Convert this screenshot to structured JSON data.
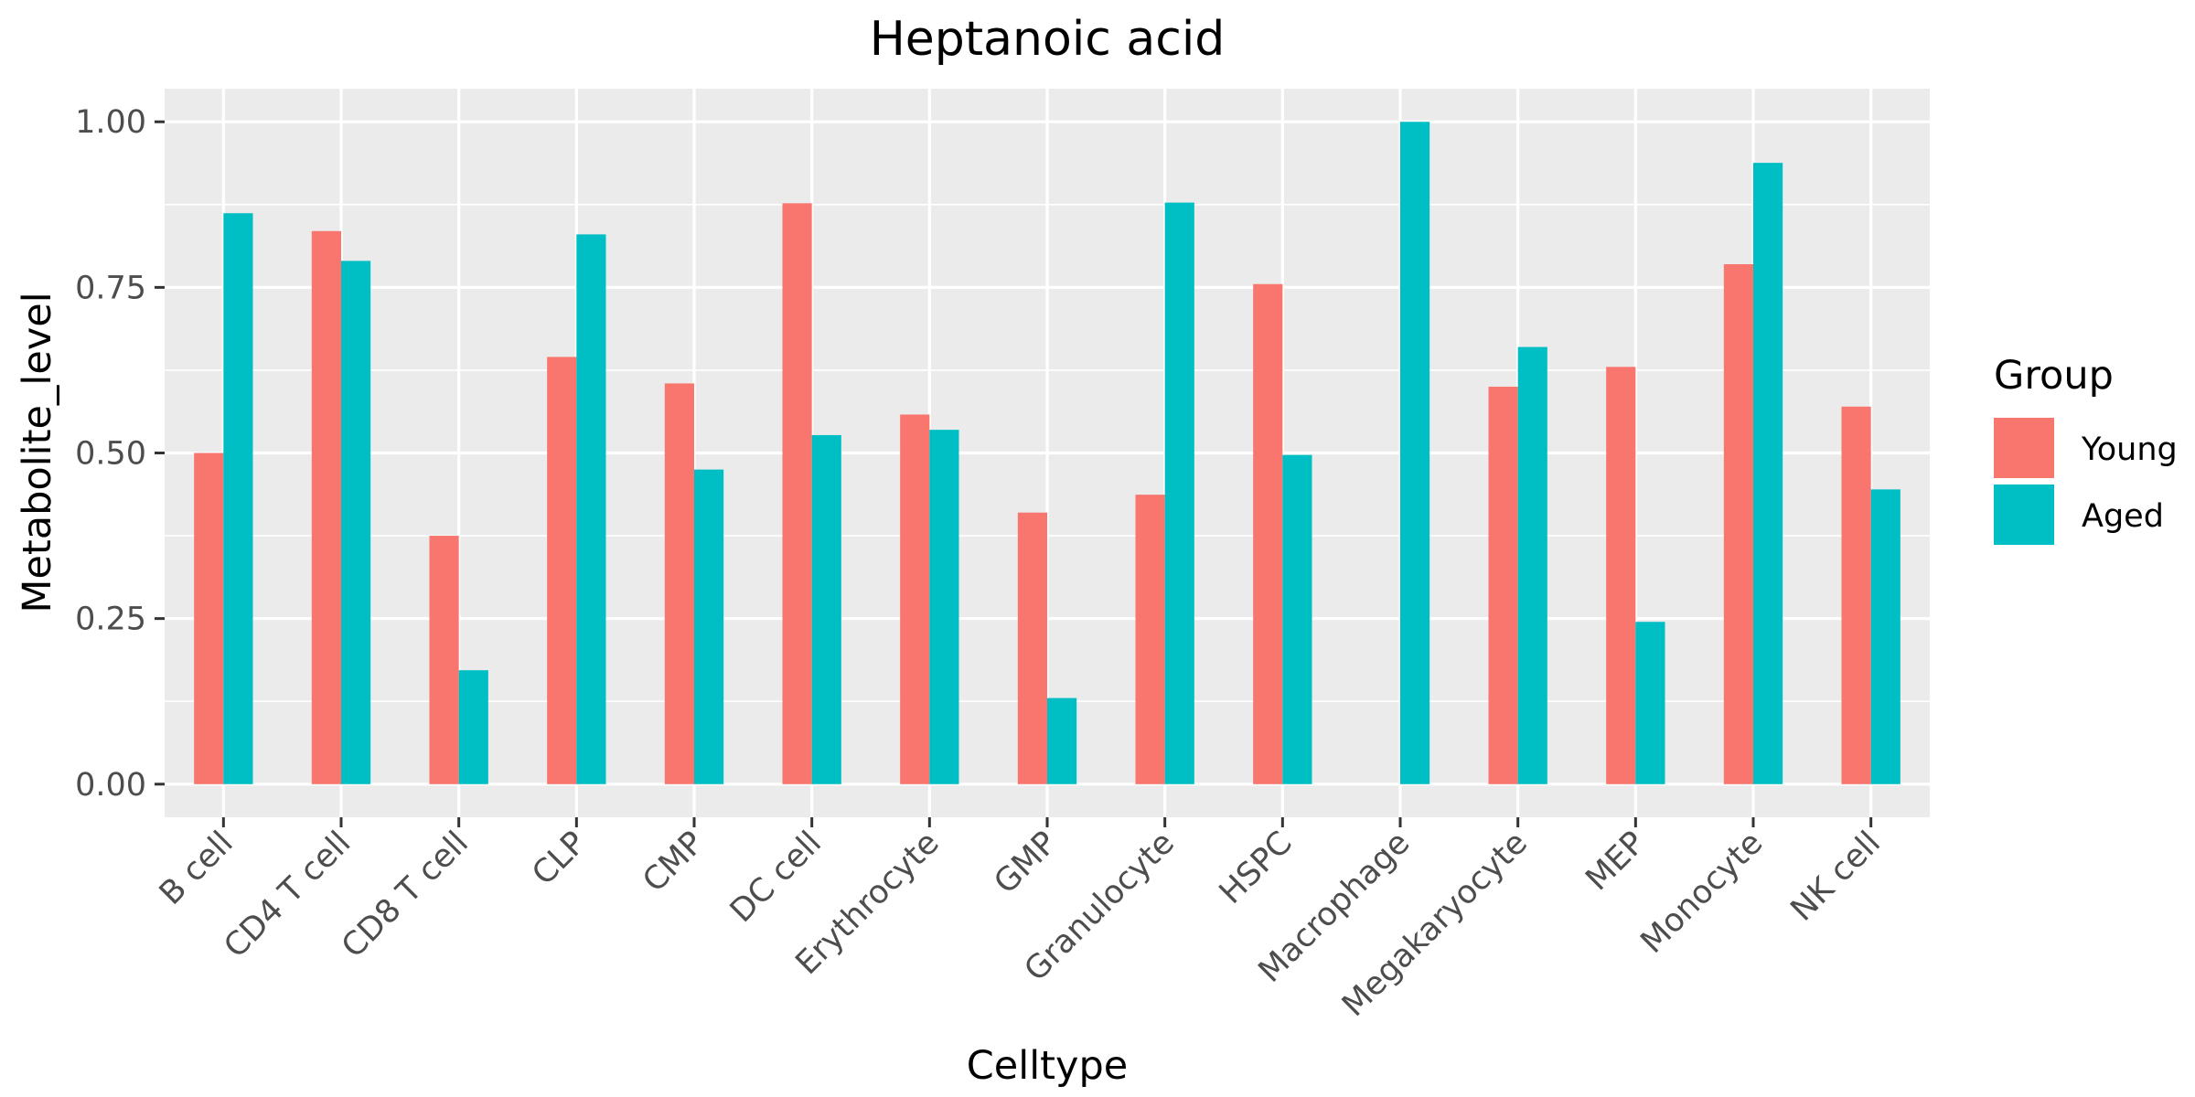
{
  "chart_data": {
    "type": "bar",
    "title": "Heptanoic acid",
    "xlabel": "Celltype",
    "ylabel": "Metabolite_level",
    "ylim": [
      -0.05,
      1.05
    ],
    "yticks": [
      0.0,
      0.25,
      0.5,
      0.75,
      1.0
    ],
    "ytick_labels": [
      "0.00",
      "0.25",
      "0.50",
      "0.75",
      "1.00"
    ],
    "grid": true,
    "legend_position": "right",
    "legend_title": "Group",
    "categories": [
      "B cell",
      "CD4 T cell",
      "CD8 T cell",
      "CLP",
      "CMP",
      "DC cell",
      "Erythrocyte",
      "GMP",
      "Granulocyte",
      "HSPC",
      "Macrophage",
      "Megakaryocyte",
      "MEP",
      "Monocyte",
      "NK cell"
    ],
    "series": [
      {
        "name": "Young",
        "color": "#F8766D",
        "values": [
          0.5,
          0.835,
          0.375,
          0.645,
          0.605,
          0.877,
          0.558,
          0.41,
          0.437,
          0.755,
          null,
          0.6,
          0.63,
          0.785,
          0.57
        ]
      },
      {
        "name": "Aged",
        "color": "#00BFC4",
        "values": [
          0.862,
          0.79,
          0.172,
          0.83,
          0.475,
          0.527,
          0.535,
          0.13,
          0.878,
          0.497,
          1.0,
          0.66,
          0.245,
          0.938,
          0.445
        ]
      }
    ],
    "colors": {
      "panel": "#EBEBEB",
      "grid": "#FFFFFF",
      "tick_text": "#4D4D4D",
      "text": "#000000"
    }
  }
}
